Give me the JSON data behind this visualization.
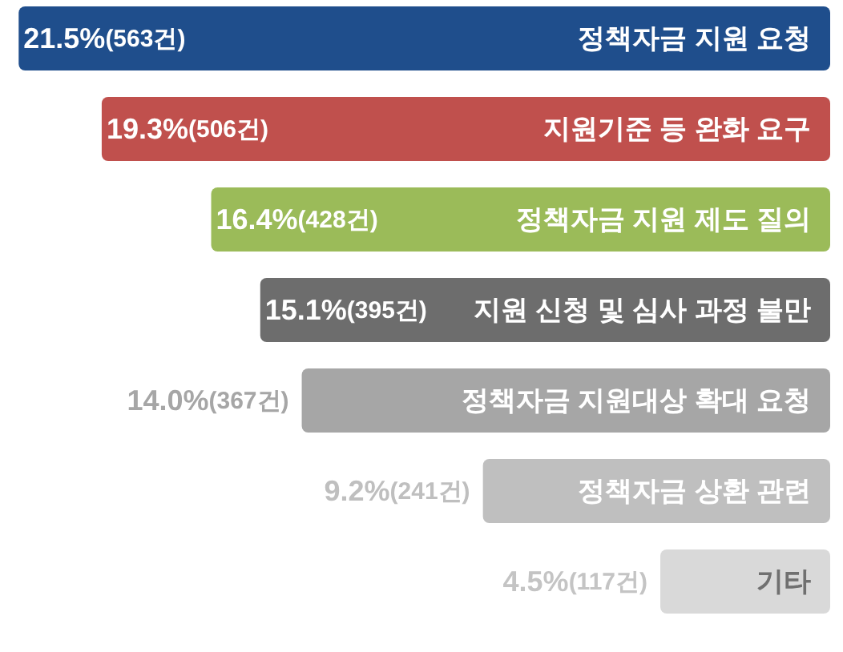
{
  "chart_data": {
    "type": "bar",
    "orientation": "horizontal",
    "categories": [
      "정책자금 지원 요청",
      "지원기준 등 완화 요구",
      "정책자금 지원 제도 질의",
      "지원 신청 및 심사 과정 불만",
      "정책자금 지원대상 확대 요청",
      "정책자금 상환 관련",
      "기타"
    ],
    "values": [
      21.5,
      19.3,
      16.4,
      15.1,
      14.0,
      9.2,
      4.5
    ],
    "value_labels": [
      "21.5%(563건)",
      "19.3%(506건)",
      "16.4%(428건)",
      "15.1%(395건)",
      "14.0%(367건)",
      "9.2%(241건)",
      "4.5%(117건)"
    ],
    "colors": [
      "#1f4e8c",
      "#c0504d",
      "#9bbb59",
      "#6d6d6d",
      "#a6a6a6",
      "#bfbfbf",
      "#d9d9d9"
    ]
  }
}
